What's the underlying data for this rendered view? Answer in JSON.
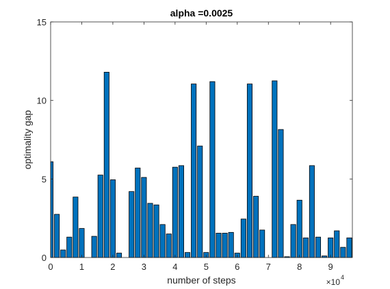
{
  "chart_data": {
    "type": "bar",
    "title": "alpha =0.0025",
    "xlabel": "number of steps",
    "ylabel": "optimality gap",
    "x_multiplier_label": "×10",
    "x_multiplier_exponent": "4",
    "xlim": [
      0,
      97000
    ],
    "ylim": [
      0,
      15
    ],
    "xticks": [
      0,
      10000,
      20000,
      30000,
      40000,
      50000,
      60000,
      70000,
      80000,
      90000
    ],
    "xtick_labels": [
      "0",
      "1",
      "2",
      "3",
      "4",
      "5",
      "6",
      "7",
      "8",
      "9"
    ],
    "yticks": [
      0,
      5,
      10,
      15
    ],
    "ytick_labels": [
      "0",
      "5",
      "10",
      "15"
    ],
    "bar_width": 1600,
    "grid": false,
    "bar_color": "#0072BD",
    "x": [
      0,
      2000,
      4000,
      6000,
      8000,
      10000,
      12000,
      14000,
      16000,
      18000,
      20000,
      22000,
      24000,
      26000,
      28000,
      30000,
      32000,
      34000,
      36000,
      38000,
      40000,
      42000,
      44000,
      46000,
      48000,
      50000,
      52000,
      54000,
      56000,
      58000,
      60000,
      62000,
      64000,
      66000,
      68000,
      70000,
      72000,
      74000,
      76000,
      78000,
      80000,
      82000,
      84000,
      86000,
      88000,
      90000,
      92000,
      94000,
      96000
    ],
    "values": [
      6.1,
      2.75,
      0.48,
      1.3,
      3.85,
      1.85,
      0.0,
      1.35,
      5.25,
      11.8,
      4.95,
      0.28,
      0.0,
      4.2,
      5.7,
      5.1,
      3.45,
      3.35,
      2.1,
      1.5,
      5.75,
      5.85,
      0.32,
      11.05,
      7.1,
      0.32,
      11.2,
      1.55,
      1.55,
      1.6,
      0.28,
      2.45,
      11.05,
      3.9,
      1.75,
      0.0,
      11.25,
      8.15,
      0.05,
      2.1,
      3.65,
      1.25,
      5.85,
      1.3,
      0.1,
      1.25,
      1.7,
      0.65,
      1.25
    ]
  }
}
